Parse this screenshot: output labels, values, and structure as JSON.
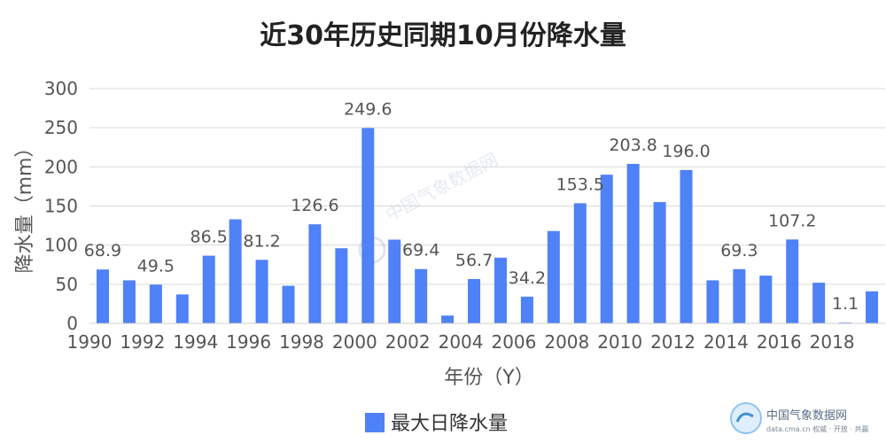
{
  "chart_data": {
    "type": "bar",
    "title": "近30年历史同期10月份降水量",
    "xlabel": "年份（Y）",
    "ylabel": "降水量（mm）",
    "ylim": [
      0,
      300
    ],
    "yticks": [
      0,
      50,
      100,
      150,
      200,
      250,
      300
    ],
    "grid": true,
    "legend_position": "bottom",
    "tick_labels": [
      "1990",
      "1992",
      "1994",
      "1996",
      "1998",
      "2000",
      "2002",
      "2004",
      "2006",
      "2008",
      "2010",
      "2012",
      "2014",
      "2016",
      "2018"
    ],
    "categories": [
      "1990",
      "1991",
      "1992",
      "1993",
      "1994",
      "1995",
      "1996",
      "1997",
      "1998",
      "1999",
      "2000",
      "2001",
      "2002",
      "2003",
      "2004",
      "2005",
      "2006",
      "2007",
      "2008",
      "2009",
      "2010",
      "2011",
      "2012",
      "2013",
      "2014",
      "2015",
      "2016",
      "2017",
      "2018",
      "2019"
    ],
    "series": [
      {
        "name": "最大日降水量",
        "color": "#4f81f7",
        "values": [
          68.9,
          55,
          49.5,
          37,
          86.5,
          133,
          81.2,
          48,
          126.6,
          96,
          249.6,
          107,
          69.4,
          10,
          56.7,
          84,
          34.2,
          118,
          153.5,
          190,
          203.8,
          155,
          196.0,
          55,
          69.3,
          61,
          107.2,
          52,
          1.1,
          41
        ]
      }
    ],
    "data_labels": [
      {
        "index": 0,
        "text": "68.9"
      },
      {
        "index": 2,
        "text": "49.5"
      },
      {
        "index": 4,
        "text": "86.5"
      },
      {
        "index": 6,
        "text": "81.2"
      },
      {
        "index": 8,
        "text": "126.6"
      },
      {
        "index": 10,
        "text": "249.6"
      },
      {
        "index": 12,
        "text": "69.4"
      },
      {
        "index": 14,
        "text": "56.7"
      },
      {
        "index": 16,
        "text": "34.2"
      },
      {
        "index": 18,
        "text": "153.5"
      },
      {
        "index": 20,
        "text": "203.8"
      },
      {
        "index": 22,
        "text": "196.0"
      },
      {
        "index": 24,
        "text": "69.3"
      },
      {
        "index": 26,
        "text": "107.2"
      },
      {
        "index": 28,
        "text": "1.1"
      }
    ]
  },
  "watermark": {
    "center_text": "中国气象数据网",
    "logo_text": "中国气象数据网",
    "logo_sub": "data.cma.cn 权威 · 开放 · 共赢"
  }
}
